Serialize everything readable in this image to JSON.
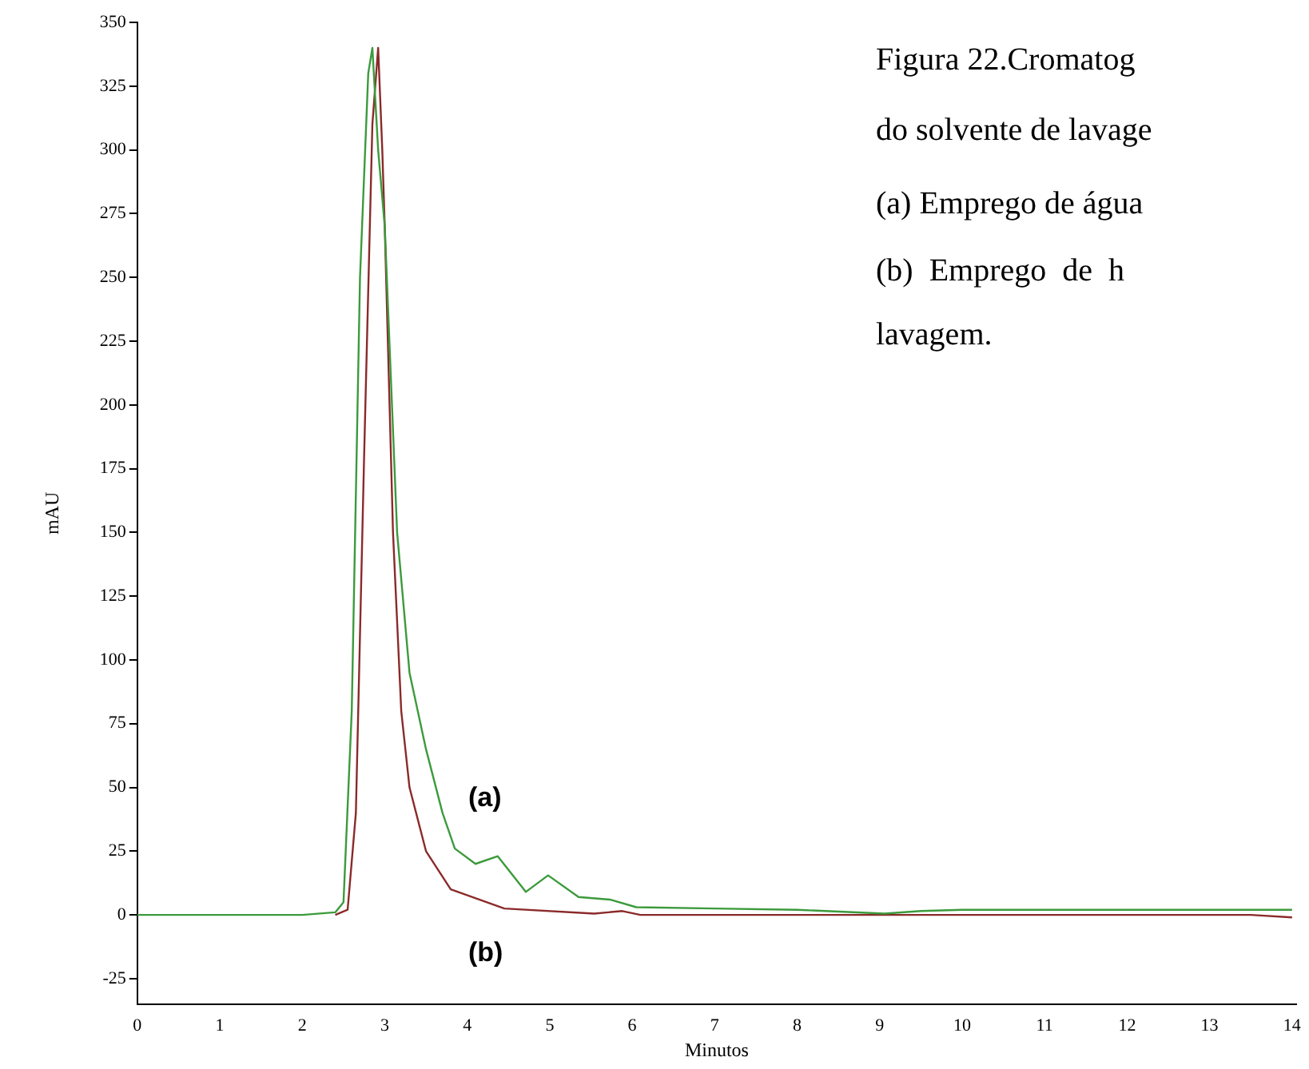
{
  "chart_data": {
    "type": "line",
    "xlabel": "Minutos",
    "ylabel": "mAU",
    "xlim": [
      0,
      14.05
    ],
    "xticks": [
      0,
      1,
      2,
      3,
      4,
      5,
      6,
      7,
      8,
      9,
      10,
      11,
      12,
      13,
      14
    ],
    "ylim": [
      -35,
      350
    ],
    "yticks": [
      -25,
      0,
      25,
      50,
      75,
      100,
      125,
      150,
      175,
      200,
      225,
      250,
      275,
      300,
      325,
      350
    ],
    "grid": false,
    "legend": false,
    "marker": "none",
    "line_style": "solid",
    "series": [
      {
        "color": "#3c9a3c",
        "x": [
          0,
          1,
          2,
          2.4,
          2.5,
          2.6,
          2.7,
          2.8,
          2.85,
          2.92,
          3.0,
          3.05,
          3.15,
          3.3,
          3.5,
          3.7,
          3.85,
          4.1,
          4.37,
          4.71,
          4.98,
          5.35,
          5.73,
          6.05,
          7,
          8,
          9.06,
          9.5,
          10,
          11,
          12,
          13,
          14
        ],
        "values": [
          0,
          0,
          0,
          1,
          5,
          80,
          250,
          330,
          340,
          300,
          270,
          230,
          150,
          95,
          65,
          40,
          26,
          20,
          23,
          9,
          15.5,
          7,
          6,
          3,
          2.5,
          2,
          0.5,
          1.5,
          2,
          2,
          2,
          2,
          2
        ]
      },
      {
        "color": "#8b2a2a",
        "x": [
          2.4,
          2.55,
          2.65,
          2.75,
          2.85,
          2.92,
          2.97,
          3.0,
          3.1,
          3.2,
          3.3,
          3.5,
          3.8,
          4.45,
          5.54,
          5.88,
          6.1,
          7,
          8,
          9,
          10,
          11,
          12,
          13,
          13.5,
          14
        ],
        "values": [
          0,
          2,
          40,
          180,
          310,
          340,
          300,
          270,
          150,
          80,
          50,
          25,
          10,
          2.5,
          0.5,
          1.5,
          0,
          0,
          0,
          0,
          0,
          0,
          0,
          0,
          0,
          -1
        ]
      }
    ],
    "annotations": [
      "(a)",
      "(b)",
      "Figura 22.Cromatog",
      "do solvente de lavage",
      "(a) Emprego de água",
      "(b)  Emprego  de  h",
      "lavagem."
    ]
  }
}
